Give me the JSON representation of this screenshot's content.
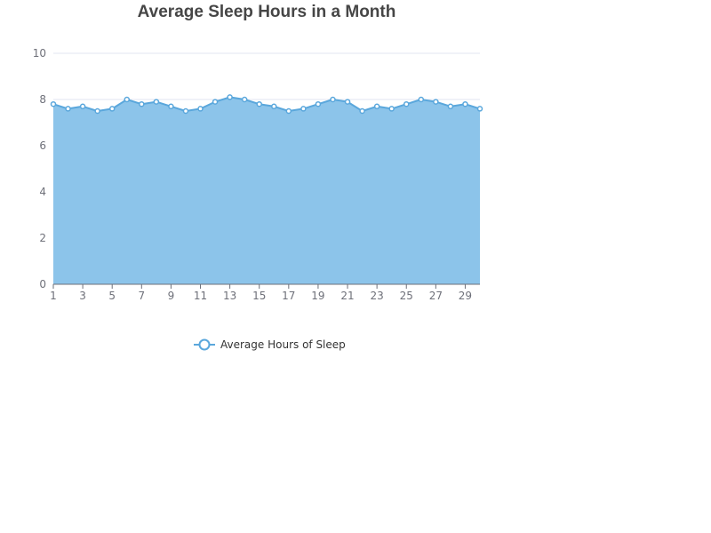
{
  "chart_data": {
    "type": "area",
    "title": "Average Sleep Hours in a Month",
    "xlabel": "",
    "ylabel": "",
    "x": [
      1,
      2,
      3,
      4,
      5,
      6,
      7,
      8,
      9,
      10,
      11,
      12,
      13,
      14,
      15,
      16,
      17,
      18,
      19,
      20,
      21,
      22,
      23,
      24,
      25,
      26,
      27,
      28,
      29,
      30
    ],
    "x_tick_labels": [
      "1",
      "3",
      "5",
      "7",
      "9",
      "11",
      "13",
      "15",
      "17",
      "19",
      "21",
      "23",
      "25",
      "27",
      "29"
    ],
    "ylim": [
      0,
      10
    ],
    "y_ticks": [
      0,
      2,
      4,
      6,
      8,
      10
    ],
    "grid": true,
    "legend_position": "bottom-center",
    "series": [
      {
        "name": "Average Hours of Sleep",
        "values": [
          7.8,
          7.6,
          7.7,
          7.5,
          7.6,
          8.0,
          7.8,
          7.9,
          7.7,
          7.5,
          7.6,
          7.9,
          8.1,
          8.0,
          7.8,
          7.7,
          7.5,
          7.6,
          7.8,
          8.0,
          7.9,
          7.5,
          7.7,
          7.6,
          7.8,
          8.0,
          7.9,
          7.7,
          7.8,
          7.6
        ],
        "line_color": "#5aa7dc",
        "fill_color": "#8cc4ea"
      }
    ],
    "colors": {
      "axis": "#6e7079",
      "grid": "#e0e6f1",
      "title": "#464646"
    }
  }
}
